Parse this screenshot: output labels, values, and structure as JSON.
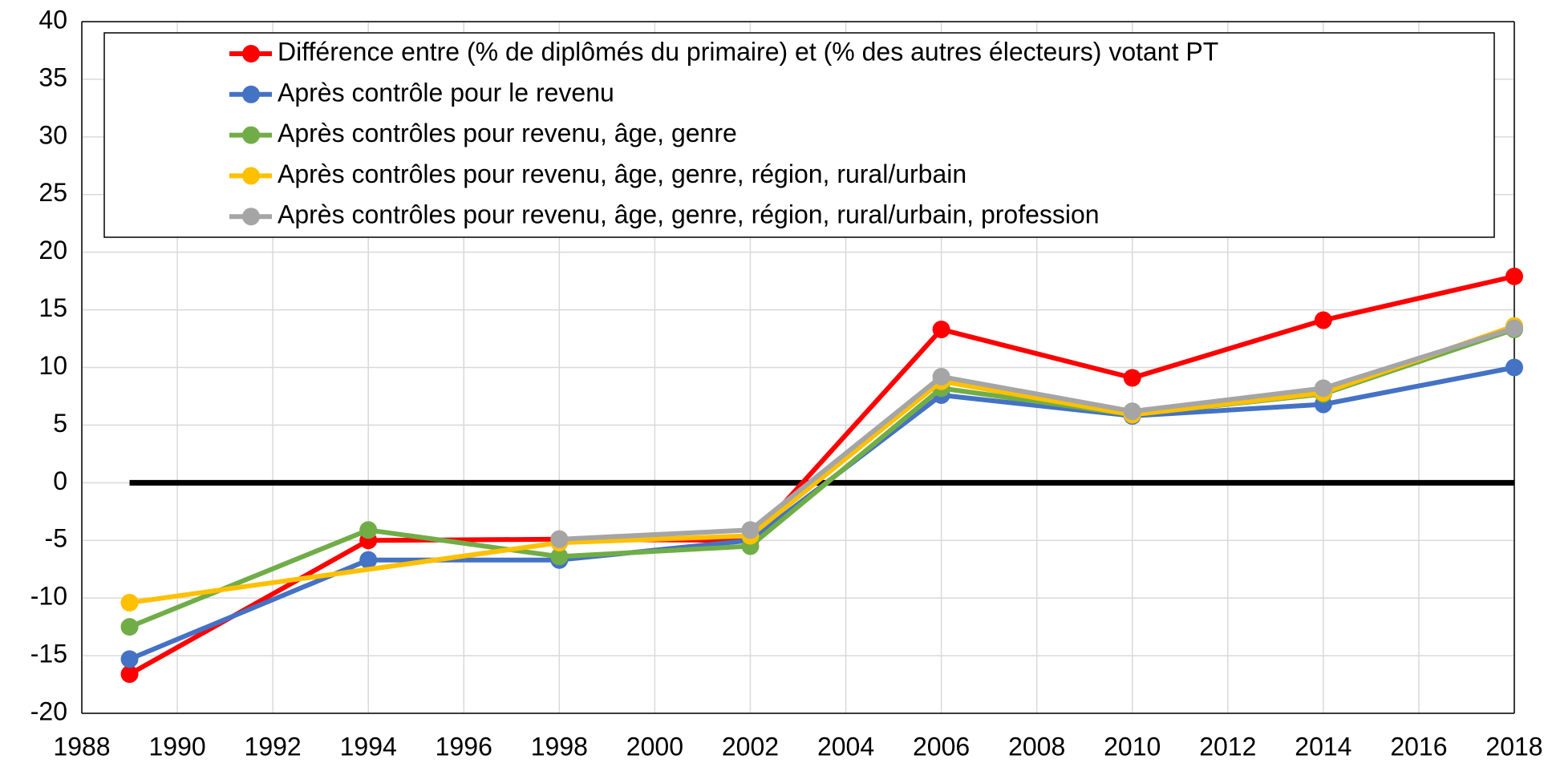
{
  "chart_data": {
    "type": "line",
    "series": [
      {
        "name": "Différence entre (% de diplômés du primaire) et (% des autres électeurs) votant PT",
        "color": "#ff0000",
        "x": [
          1989,
          1994,
          1998,
          2002,
          2006,
          2010,
          2014,
          2018
        ],
        "values": [
          -16.6,
          -5.0,
          -4.9,
          -5.0,
          13.3,
          9.1,
          14.1,
          17.9
        ]
      },
      {
        "name": "Après contrôle pour le revenu",
        "color": "#4472c4",
        "x": [
          1989,
          1994,
          1998,
          2002,
          2006,
          2010,
          2014,
          2018
        ],
        "values": [
          -15.3,
          -6.7,
          -6.7,
          -5.0,
          7.6,
          5.8,
          6.8,
          10.0
        ]
      },
      {
        "name": "Après contrôles pour revenu, âge, genre",
        "color": "#70ad47",
        "x": [
          1989,
          1994,
          1998,
          2002,
          2006,
          2010,
          2014,
          2018
        ],
        "values": [
          -12.5,
          -4.1,
          -6.4,
          -5.5,
          8.2,
          5.9,
          7.7,
          13.3
        ]
      },
      {
        "name": "Après contrôles pour revenu, âge, genre, région, rural/urbain",
        "color": "#ffc000",
        "x": [
          1989,
          1998,
          2002,
          2006,
          2010,
          2014,
          2018
        ],
        "values": [
          -10.4,
          -5.2,
          -4.6,
          8.8,
          5.9,
          7.8,
          13.6
        ]
      },
      {
        "name": "Après contrôles pour revenu, âge, genre, région, rural/urbain, profession",
        "color": "#a5a5a5",
        "x": [
          1998,
          2002,
          2006,
          2010,
          2014,
          2018
        ],
        "values": [
          -4.9,
          -4.1,
          9.2,
          6.2,
          8.2,
          13.4
        ]
      }
    ],
    "xlim": [
      1988,
      2018
    ],
    "xticks": [
      1988,
      1990,
      1992,
      1994,
      1996,
      1998,
      2000,
      2002,
      2004,
      2006,
      2008,
      2010,
      2012,
      2014,
      2016,
      2018
    ],
    "ylim": [
      -20,
      40
    ],
    "yticks": [
      -20,
      -15,
      -10,
      -5,
      0,
      5,
      10,
      15,
      20,
      25,
      30,
      35,
      40
    ],
    "grid": true,
    "hline": 0,
    "legend": "top"
  }
}
